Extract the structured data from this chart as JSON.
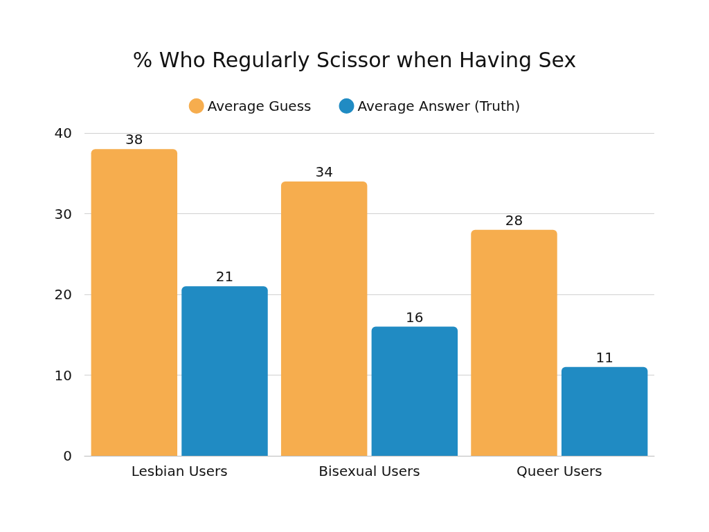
{
  "chart_data": {
    "type": "bar",
    "title": "% Who Regularly Scissor when Having Sex",
    "categories": [
      "Lesbian Users",
      "Bisexual Users",
      "Queer Users"
    ],
    "series": [
      {
        "name": "Average Guess",
        "color": "#f6ad4e",
        "values": [
          38,
          34,
          28
        ]
      },
      {
        "name": "Average Answer (Truth)",
        "color": "#208bc3",
        "values": [
          21,
          16,
          11
        ]
      }
    ],
    "ylim": [
      0,
      40
    ],
    "yticks": [
      0,
      10,
      20,
      30,
      40
    ],
    "grid": "y",
    "legend": "top",
    "data_labels": true
  }
}
